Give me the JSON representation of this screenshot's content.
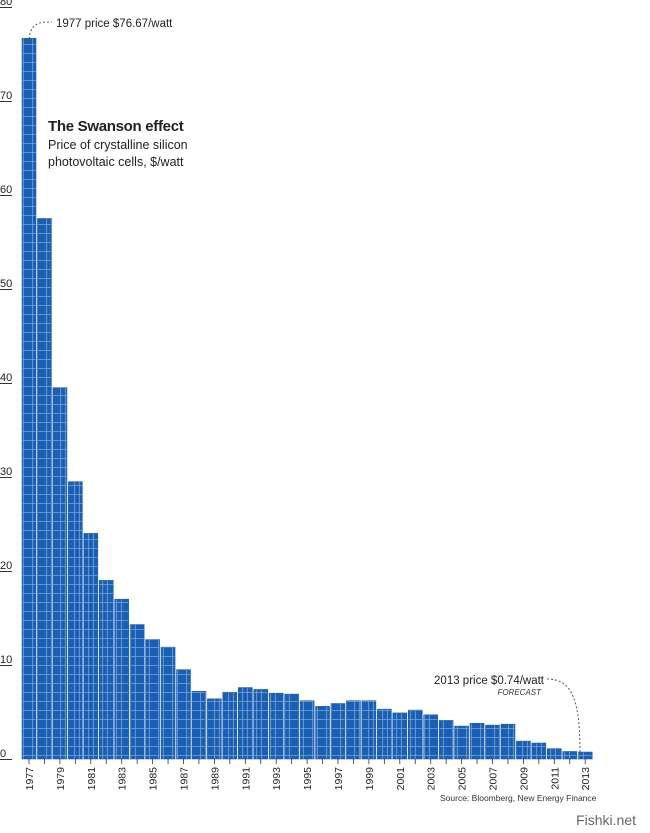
{
  "chart_data": {
    "type": "bar",
    "title": "The Swanson effect",
    "subtitle": "Price of crystalline silicon photovoltaic cells, $/watt",
    "xlabel": "",
    "ylabel": "$/watt",
    "ylim": [
      0,
      80
    ],
    "yticks": [
      0,
      10,
      20,
      30,
      40,
      50,
      60,
      70,
      80
    ],
    "years": [
      1977,
      1978,
      1979,
      1980,
      1981,
      1982,
      1983,
      1984,
      1985,
      1986,
      1987,
      1988,
      1989,
      1990,
      1991,
      1992,
      1993,
      1994,
      1995,
      1996,
      1997,
      1998,
      1999,
      2000,
      2001,
      2002,
      2003,
      2004,
      2005,
      2006,
      2007,
      2008,
      2009,
      2010,
      2011,
      2012,
      2013
    ],
    "xtick_labels": [
      "1977",
      "1979",
      "1981",
      "1983",
      "1985",
      "1987",
      "1989",
      "1991",
      "1993",
      "1995",
      "1997",
      "1999",
      "2001",
      "2003",
      "2005",
      "2007",
      "2009",
      "2011",
      "2013"
    ],
    "values": [
      76.67,
      57.5,
      39.5,
      29.5,
      24.0,
      19.0,
      17.0,
      14.3,
      12.7,
      11.9,
      9.5,
      7.2,
      6.4,
      7.1,
      7.6,
      7.4,
      7.0,
      6.9,
      6.2,
      5.6,
      5.9,
      6.2,
      6.2,
      5.3,
      4.9,
      5.2,
      4.7,
      4.1,
      3.5,
      3.8,
      3.6,
      3.7,
      1.9,
      1.7,
      1.1,
      0.8,
      0.74
    ],
    "color": "#1a5fb4",
    "annotations": [
      {
        "label": "1977 price $76.67/watt"
      },
      {
        "label": "2013 price $0.74/watt"
      },
      {
        "label": "FORECAST"
      }
    ],
    "source": "Source: Bloomberg, New Energy Finance",
    "watermark": "Fishki.net"
  }
}
